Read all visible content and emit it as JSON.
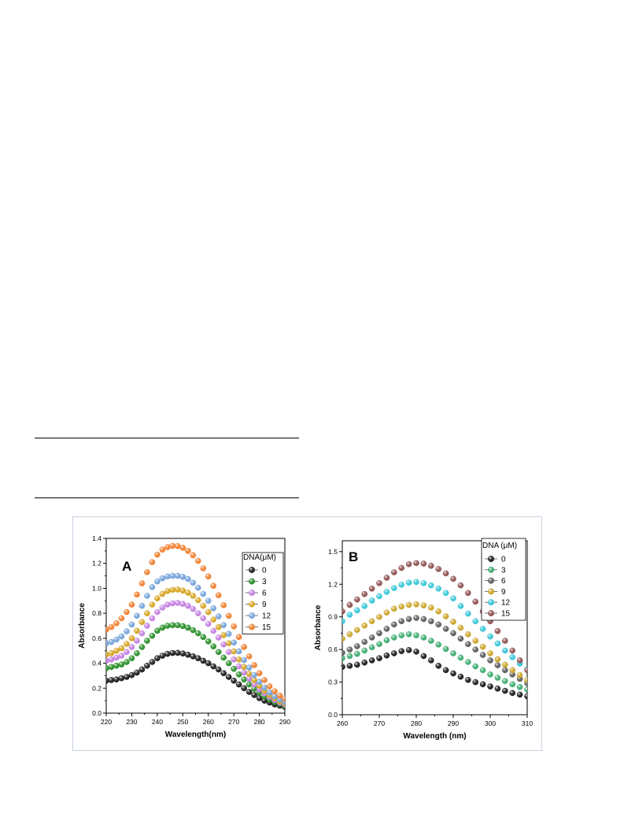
{
  "chart_data": [
    {
      "type": "scatter",
      "panel_label": "A",
      "xlabel": "Wavelength(nm)",
      "ylabel": "Absorbance",
      "xlim": [
        220,
        290
      ],
      "ylim": [
        0.0,
        1.4
      ],
      "x_ticks": [
        "220",
        "230",
        "240",
        "250",
        "260",
        "270",
        "280",
        "290"
      ],
      "y_ticks": [
        "0.0",
        "0.2",
        "0.4",
        "0.6",
        "0.8",
        "1.0",
        "1.2",
        "1.4"
      ],
      "legend_title": "DNA(μM)",
      "legend_position": "top-right",
      "grid": false,
      "x": [
        220,
        222,
        224,
        226,
        228,
        230,
        232,
        234,
        236,
        238,
        240,
        242,
        244,
        246,
        248,
        250,
        252,
        254,
        256,
        258,
        260,
        262,
        264,
        266,
        268,
        270,
        272,
        274,
        276,
        278,
        280,
        282,
        284,
        286,
        288,
        290
      ],
      "series": [
        {
          "name": "0",
          "color": "#111111",
          "values": [
            0.26,
            0.265,
            0.27,
            0.28,
            0.29,
            0.305,
            0.325,
            0.35,
            0.38,
            0.41,
            0.44,
            0.46,
            0.475,
            0.482,
            0.483,
            0.478,
            0.468,
            0.455,
            0.44,
            0.42,
            0.4,
            0.375,
            0.35,
            0.32,
            0.29,
            0.26,
            0.23,
            0.2,
            0.17,
            0.145,
            0.12,
            0.1,
            0.085,
            0.07,
            0.06,
            0.05
          ]
        },
        {
          "name": "3",
          "color": "#1f8a1f",
          "values": [
            0.36,
            0.37,
            0.38,
            0.39,
            0.41,
            0.44,
            0.48,
            0.53,
            0.58,
            0.62,
            0.66,
            0.685,
            0.7,
            0.705,
            0.705,
            0.698,
            0.685,
            0.665,
            0.64,
            0.61,
            0.575,
            0.535,
            0.49,
            0.445,
            0.4,
            0.355,
            0.31,
            0.27,
            0.23,
            0.195,
            0.165,
            0.135,
            0.11,
            0.09,
            0.075,
            0.06
          ]
        },
        {
          "name": "6",
          "color": "#c27be0",
          "values": [
            0.42,
            0.43,
            0.445,
            0.46,
            0.49,
            0.53,
            0.58,
            0.64,
            0.7,
            0.76,
            0.81,
            0.845,
            0.87,
            0.88,
            0.883,
            0.875,
            0.86,
            0.835,
            0.8,
            0.76,
            0.715,
            0.66,
            0.605,
            0.55,
            0.49,
            0.43,
            0.375,
            0.325,
            0.275,
            0.23,
            0.19,
            0.16,
            0.13,
            0.105,
            0.085,
            0.07
          ]
        },
        {
          "name": "9",
          "color": "#d4a017",
          "values": [
            0.47,
            0.48,
            0.5,
            0.52,
            0.555,
            0.6,
            0.66,
            0.73,
            0.8,
            0.87,
            0.92,
            0.955,
            0.978,
            0.988,
            0.99,
            0.982,
            0.965,
            0.94,
            0.905,
            0.86,
            0.81,
            0.75,
            0.69,
            0.625,
            0.56,
            0.495,
            0.43,
            0.37,
            0.315,
            0.265,
            0.22,
            0.18,
            0.145,
            0.12,
            0.095,
            0.08
          ]
        },
        {
          "name": "12",
          "color": "#6f9fd8",
          "values": [
            0.56,
            0.57,
            0.59,
            0.615,
            0.655,
            0.71,
            0.78,
            0.86,
            0.94,
            1.01,
            1.055,
            1.08,
            1.095,
            1.1,
            1.1,
            1.092,
            1.075,
            1.045,
            1.005,
            0.955,
            0.9,
            0.84,
            0.775,
            0.705,
            0.635,
            0.565,
            0.495,
            0.425,
            0.365,
            0.305,
            0.25,
            0.205,
            0.165,
            0.135,
            0.11,
            0.09
          ]
        },
        {
          "name": "15",
          "color": "#f07a25",
          "values": [
            0.67,
            0.69,
            0.72,
            0.76,
            0.81,
            0.87,
            0.95,
            1.04,
            1.13,
            1.21,
            1.27,
            1.31,
            1.33,
            1.34,
            1.338,
            1.325,
            1.3,
            1.265,
            1.22,
            1.16,
            1.095,
            1.02,
            0.945,
            0.865,
            0.78,
            0.695,
            0.61,
            0.53,
            0.455,
            0.385,
            0.32,
            0.265,
            0.215,
            0.175,
            0.14,
            0.115
          ]
        }
      ]
    },
    {
      "type": "scatter",
      "panel_label": "B",
      "xlabel": "Wavelength (nm)",
      "ylabel": "Absorbance",
      "xlim": [
        260,
        310
      ],
      "ylim": [
        0.0,
        1.6
      ],
      "x_ticks": [
        "260",
        "270",
        "280",
        "290",
        "300",
        "310"
      ],
      "y_ticks": [
        "0.0",
        "0.3",
        "0.6",
        "0.9",
        "1.2",
        "1.5"
      ],
      "legend_title": "DNA (μM)",
      "legend_position": "top-right",
      "grid": false,
      "x": [
        260,
        262,
        264,
        266,
        268,
        270,
        272,
        274,
        276,
        278,
        280,
        282,
        284,
        286,
        288,
        290,
        292,
        294,
        296,
        298,
        300,
        302,
        304,
        306,
        308,
        310
      ],
      "series": [
        {
          "name": "0",
          "color": "#111111",
          "values": [
            0.44,
            0.45,
            0.46,
            0.48,
            0.5,
            0.52,
            0.545,
            0.565,
            0.585,
            0.595,
            0.58,
            0.54,
            0.5,
            0.45,
            0.41,
            0.38,
            0.35,
            0.32,
            0.3,
            0.28,
            0.26,
            0.24,
            0.22,
            0.2,
            0.185,
            0.17
          ]
        },
        {
          "name": "3",
          "color": "#35a86a",
          "values": [
            0.52,
            0.54,
            0.56,
            0.59,
            0.62,
            0.65,
            0.685,
            0.71,
            0.73,
            0.74,
            0.73,
            0.71,
            0.68,
            0.645,
            0.605,
            0.565,
            0.525,
            0.485,
            0.445,
            0.41,
            0.37,
            0.34,
            0.31,
            0.28,
            0.255,
            0.23
          ]
        },
        {
          "name": "6",
          "color": "#555555",
          "values": [
            0.57,
            0.6,
            0.63,
            0.67,
            0.71,
            0.75,
            0.79,
            0.83,
            0.86,
            0.88,
            0.89,
            0.88,
            0.86,
            0.83,
            0.79,
            0.75,
            0.7,
            0.65,
            0.6,
            0.55,
            0.5,
            0.455,
            0.41,
            0.37,
            0.33,
            0.29
          ]
        },
        {
          "name": "9",
          "color": "#c9a020",
          "values": [
            0.7,
            0.74,
            0.78,
            0.82,
            0.86,
            0.9,
            0.94,
            0.975,
            0.995,
            1.01,
            1.015,
            1.005,
            0.985,
            0.95,
            0.905,
            0.855,
            0.8,
            0.74,
            0.68,
            0.625,
            0.565,
            0.51,
            0.46,
            0.41,
            0.365,
            0.32
          ]
        },
        {
          "name": "12",
          "color": "#2ec4d6",
          "values": [
            0.86,
            0.92,
            0.96,
            1.0,
            1.05,
            1.09,
            1.13,
            1.165,
            1.195,
            1.215,
            1.22,
            1.21,
            1.19,
            1.16,
            1.12,
            1.07,
            1.0,
            0.93,
            0.86,
            0.79,
            0.72,
            0.655,
            0.59,
            0.53,
            0.47,
            0.42
          ]
        },
        {
          "name": "15",
          "color": "#8b4a4a",
          "values": [
            0.95,
            1.01,
            1.06,
            1.11,
            1.16,
            1.21,
            1.26,
            1.31,
            1.35,
            1.385,
            1.395,
            1.39,
            1.37,
            1.34,
            1.3,
            1.25,
            1.19,
            1.12,
            1.04,
            0.95,
            0.86,
            0.77,
            0.68,
            0.59,
            0.5,
            0.41
          ]
        }
      ]
    }
  ]
}
